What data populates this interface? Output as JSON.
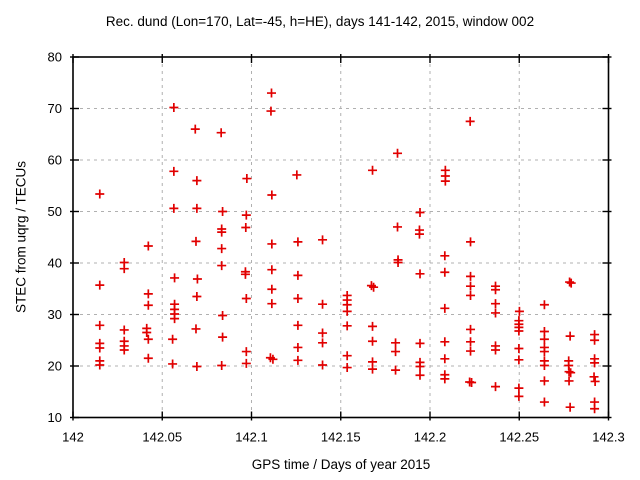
{
  "chart_data": {
    "type": "scatter",
    "title": "Rec. dund (Lon=170, Lat=-45, h=HE), days 141-142, 2015, window 002",
    "xlabel": "GPS time / Days of year 2015",
    "ylabel": "STEC from uqrg / TECUs",
    "xlim": [
      142.0,
      142.3
    ],
    "ylim": [
      10,
      80
    ],
    "xticks": [
      {
        "value": 142.0,
        "label": "142"
      },
      {
        "value": 142.05,
        "label": "142.05"
      },
      {
        "value": 142.1,
        "label": "142.1"
      },
      {
        "value": 142.15,
        "label": "142.15"
      },
      {
        "value": 142.2,
        "label": "142.2"
      },
      {
        "value": 142.25,
        "label": "142.25"
      },
      {
        "value": 142.3,
        "label": "142.3"
      }
    ],
    "yticks": [
      {
        "value": 10,
        "label": "10"
      },
      {
        "value": 20,
        "label": "20"
      },
      {
        "value": 30,
        "label": "30"
      },
      {
        "value": 40,
        "label": "40"
      },
      {
        "value": 50,
        "label": "50"
      },
      {
        "value": 60,
        "label": "60"
      },
      {
        "value": 70,
        "label": "70"
      },
      {
        "value": 80,
        "label": "80"
      }
    ],
    "grid": {
      "show": true,
      "style": "dashed",
      "color": "#b0b0b0"
    },
    "legend": "none",
    "axis_color": "#000000",
    "background": "#ffffff",
    "marker": {
      "shape": "plus",
      "color": "#e10000",
      "size": 9,
      "stroke_width": 1.7
    },
    "series": [
      {
        "name": "STEC",
        "points": [
          [
            142.015,
            53.4
          ],
          [
            142.015,
            35.7
          ],
          [
            142.015,
            27.9
          ],
          [
            142.015,
            24.4
          ],
          [
            142.015,
            23.5
          ],
          [
            142.015,
            21.0
          ],
          [
            142.015,
            20.2
          ],
          [
            142.0287,
            40.1
          ],
          [
            142.0287,
            38.9
          ],
          [
            142.0287,
            27.0
          ],
          [
            142.0287,
            24.8
          ],
          [
            142.0287,
            23.9
          ],
          [
            142.0287,
            23.1
          ],
          [
            142.0422,
            43.3
          ],
          [
            142.0422,
            34.0
          ],
          [
            142.0422,
            31.8
          ],
          [
            142.0413,
            27.3
          ],
          [
            142.0413,
            26.5
          ],
          [
            142.0422,
            25.2
          ],
          [
            142.0422,
            21.5
          ],
          [
            142.0565,
            70.2
          ],
          [
            142.0565,
            57.8
          ],
          [
            142.0565,
            50.6
          ],
          [
            142.0569,
            37.1
          ],
          [
            142.0569,
            32.0
          ],
          [
            142.0569,
            31.0
          ],
          [
            142.0569,
            30.1
          ],
          [
            142.0569,
            29.2
          ],
          [
            142.0558,
            25.2
          ],
          [
            142.0558,
            20.4
          ],
          [
            142.0685,
            66.0
          ],
          [
            142.0694,
            56.0
          ],
          [
            142.0694,
            50.6
          ],
          [
            142.0689,
            44.2
          ],
          [
            142.0697,
            36.9
          ],
          [
            142.0694,
            33.5
          ],
          [
            142.0689,
            27.2
          ],
          [
            142.0694,
            19.9
          ],
          [
            142.083,
            65.3
          ],
          [
            142.0838,
            50.0
          ],
          [
            142.0833,
            46.6
          ],
          [
            142.0833,
            46.0
          ],
          [
            142.0833,
            42.8
          ],
          [
            142.0833,
            39.5
          ],
          [
            142.0838,
            29.8
          ],
          [
            142.0838,
            25.6
          ],
          [
            142.0833,
            20.1
          ],
          [
            142.0974,
            56.4
          ],
          [
            142.0971,
            49.3
          ],
          [
            142.0968,
            46.9
          ],
          [
            142.0966,
            38.3
          ],
          [
            142.0966,
            37.8
          ],
          [
            142.0971,
            33.1
          ],
          [
            142.0971,
            22.8
          ],
          [
            142.0971,
            20.5
          ],
          [
            142.1112,
            73.0
          ],
          [
            142.1109,
            69.5
          ],
          [
            142.1114,
            53.2
          ],
          [
            142.1114,
            43.7
          ],
          [
            142.1114,
            38.7
          ],
          [
            142.1114,
            34.9
          ],
          [
            142.1114,
            32.1
          ],
          [
            142.1106,
            21.6
          ],
          [
            142.112,
            21.3
          ],
          [
            142.1254,
            57.1
          ],
          [
            142.126,
            44.1
          ],
          [
            142.126,
            37.6
          ],
          [
            142.126,
            33.1
          ],
          [
            142.126,
            27.9
          ],
          [
            142.126,
            23.6
          ],
          [
            142.126,
            21.1
          ],
          [
            142.1398,
            44.5
          ],
          [
            142.1398,
            32.0
          ],
          [
            142.1398,
            26.4
          ],
          [
            142.1398,
            24.5
          ],
          [
            142.1398,
            20.2
          ],
          [
            142.1536,
            33.7
          ],
          [
            142.1536,
            32.8
          ],
          [
            142.1536,
            31.9
          ],
          [
            142.1536,
            30.6
          ],
          [
            142.1536,
            27.8
          ],
          [
            142.1536,
            22.0
          ],
          [
            142.1536,
            19.7
          ],
          [
            142.1678,
            58.0
          ],
          [
            142.1672,
            35.6
          ],
          [
            142.1684,
            35.3
          ],
          [
            142.1678,
            27.7
          ],
          [
            142.1678,
            24.8
          ],
          [
            142.1678,
            20.8
          ],
          [
            142.1678,
            19.4
          ],
          [
            142.1818,
            61.3
          ],
          [
            142.1818,
            47.0
          ],
          [
            142.1821,
            40.6
          ],
          [
            142.1821,
            40.1
          ],
          [
            142.1807,
            24.5
          ],
          [
            142.1807,
            22.8
          ],
          [
            142.1807,
            19.2
          ],
          [
            142.1944,
            49.8
          ],
          [
            142.1941,
            46.4
          ],
          [
            142.1941,
            45.6
          ],
          [
            142.1944,
            37.9
          ],
          [
            142.1944,
            24.4
          ],
          [
            142.1944,
            20.7
          ],
          [
            142.1944,
            19.9
          ],
          [
            142.1944,
            18.2
          ],
          [
            142.2086,
            58.0
          ],
          [
            142.2086,
            56.9
          ],
          [
            142.2086,
            55.9
          ],
          [
            142.2083,
            41.4
          ],
          [
            142.2083,
            38.2
          ],
          [
            142.2083,
            31.2
          ],
          [
            142.2083,
            24.7
          ],
          [
            142.2083,
            21.4
          ],
          [
            142.2083,
            18.3
          ],
          [
            142.2083,
            17.5
          ],
          [
            142.2225,
            67.5
          ],
          [
            142.2227,
            44.1
          ],
          [
            142.2227,
            37.4
          ],
          [
            142.2227,
            35.5
          ],
          [
            142.2227,
            33.7
          ],
          [
            142.2227,
            27.1
          ],
          [
            142.2227,
            24.7
          ],
          [
            142.2227,
            22.9
          ],
          [
            142.2222,
            16.9
          ],
          [
            142.2233,
            16.8
          ],
          [
            142.2367,
            35.5
          ],
          [
            142.2367,
            34.8
          ],
          [
            142.2367,
            32.1
          ],
          [
            142.2367,
            30.3
          ],
          [
            142.2367,
            23.9
          ],
          [
            142.2367,
            23.1
          ],
          [
            142.2367,
            16.0
          ],
          [
            142.2501,
            30.6
          ],
          [
            142.2498,
            28.8
          ],
          [
            142.2498,
            28.1
          ],
          [
            142.2498,
            27.5
          ],
          [
            142.2498,
            26.8
          ],
          [
            142.2498,
            23.4
          ],
          [
            142.2498,
            21.2
          ],
          [
            142.2498,
            15.7
          ],
          [
            142.2498,
            14.1
          ],
          [
            142.2641,
            31.9
          ],
          [
            142.2641,
            26.7
          ],
          [
            142.2641,
            25.2
          ],
          [
            142.2641,
            23.6
          ],
          [
            142.2641,
            22.8
          ],
          [
            142.2641,
            21.0
          ],
          [
            142.2641,
            20.1
          ],
          [
            142.2641,
            17.1
          ],
          [
            142.2641,
            13.0
          ],
          [
            142.2782,
            36.3
          ],
          [
            142.2791,
            36.1
          ],
          [
            142.2785,
            25.8
          ],
          [
            142.2777,
            21.0
          ],
          [
            142.2777,
            20.1
          ],
          [
            142.2779,
            18.9
          ],
          [
            142.2788,
            18.7
          ],
          [
            142.2779,
            17.1
          ],
          [
            142.2785,
            12.0
          ],
          [
            142.2922,
            26.1
          ],
          [
            142.2922,
            25.0
          ],
          [
            142.2922,
            21.4
          ],
          [
            142.2922,
            20.6
          ],
          [
            142.2919,
            17.9
          ],
          [
            142.2925,
            17.0
          ],
          [
            142.2922,
            13.0
          ],
          [
            142.2922,
            11.7
          ]
        ]
      }
    ]
  }
}
